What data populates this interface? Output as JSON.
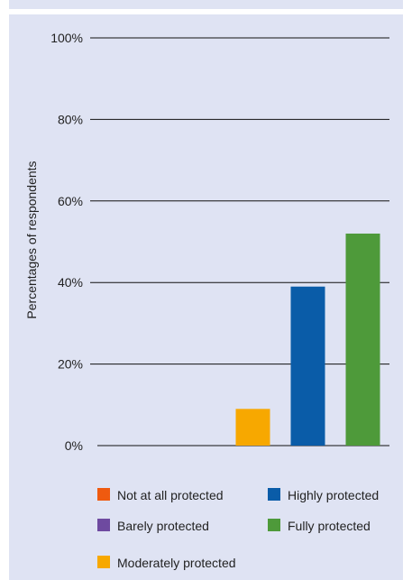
{
  "chart_data": {
    "type": "bar",
    "title": "",
    "xlabel": "",
    "ylabel": "Percentages of respondents",
    "ylim": [
      0,
      100
    ],
    "yticks": [
      0,
      20,
      40,
      60,
      80,
      100
    ],
    "ytick_labels": [
      "0%",
      "20%",
      "40%",
      "60%",
      "80%",
      "100%"
    ],
    "categories": [
      "Not at all protected",
      "Barely protected",
      "Moderately protected",
      "Highly protected",
      "Fully protected"
    ],
    "values": [
      0,
      0,
      9,
      39,
      52
    ],
    "colors": [
      "#ef5a0f",
      "#6e4aa0",
      "#f7a800",
      "#0a5ca8",
      "#4e9a3a"
    ],
    "grid": true,
    "legend_position": "bottom"
  }
}
